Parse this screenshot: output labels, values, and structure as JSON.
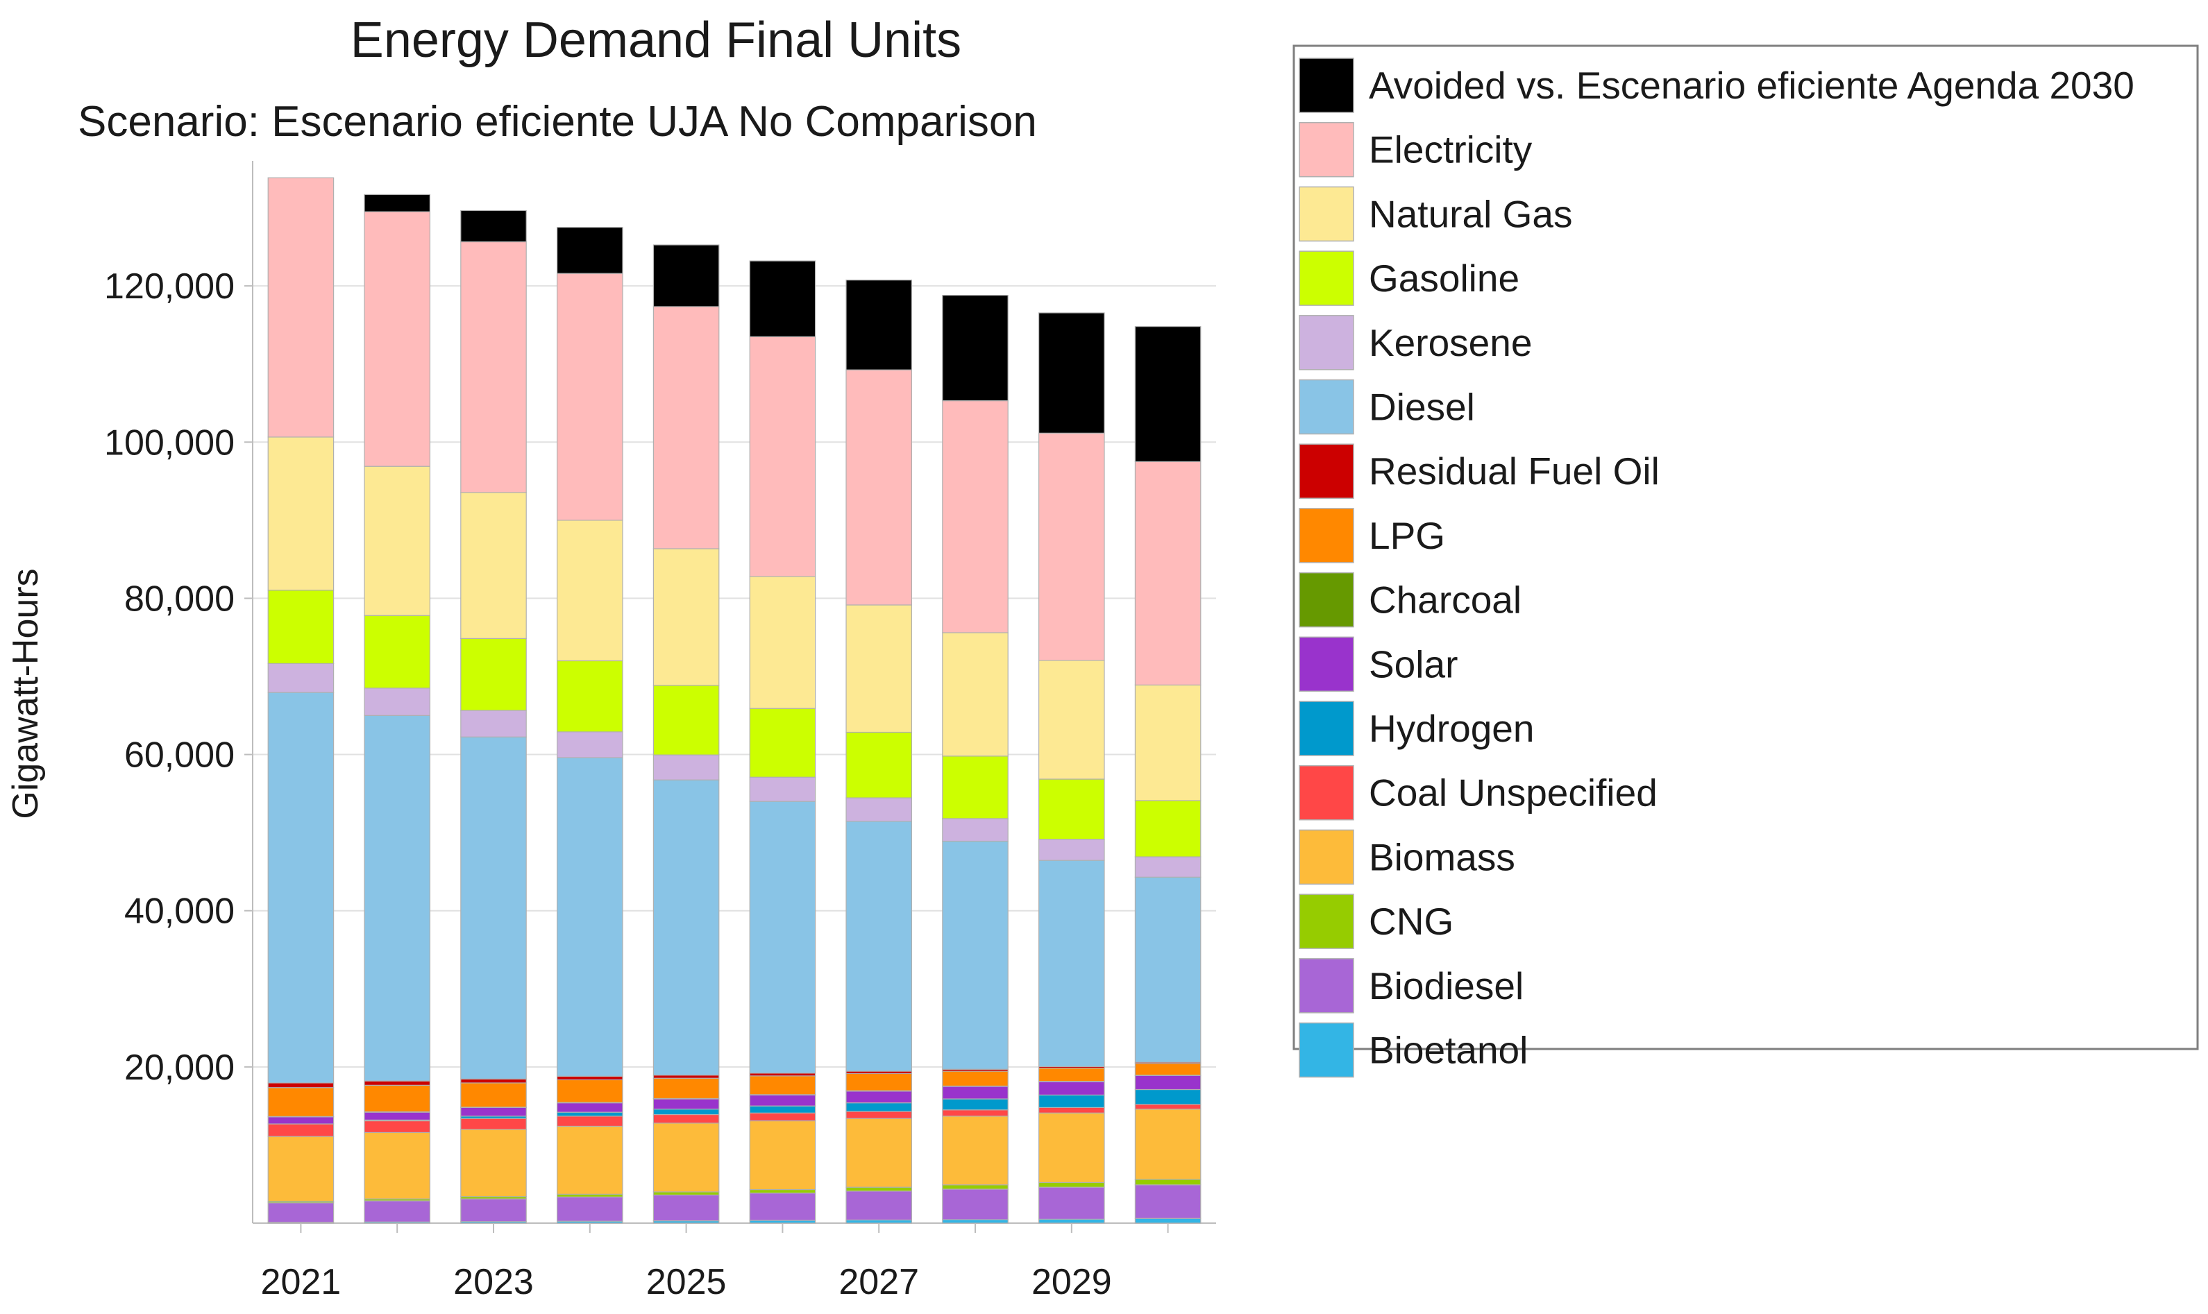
{
  "chart_data": {
    "type": "bar",
    "stacked": true,
    "title": "Energy Demand Final Units",
    "subtitle": "Scenario: Escenario eficiente UJA No Comparison",
    "xlabel": "",
    "ylabel": "Gigawatt-Hours",
    "ylim": [
      0,
      136000
    ],
    "yticks": [
      20000,
      40000,
      60000,
      80000,
      100000,
      120000
    ],
    "ytick_labels": [
      "20,000",
      "40,000",
      "60,000",
      "80,000",
      "100,000",
      "120,000"
    ],
    "grid": true,
    "legend_position": "right",
    "categories": [
      "2021",
      "2022",
      "2023",
      "2024",
      "2025",
      "2026",
      "2027",
      "2028",
      "2029",
      "2030"
    ],
    "xtick_labels": [
      "2021",
      "",
      "2023",
      "",
      "2025",
      "",
      "2027",
      "",
      "2029",
      ""
    ],
    "series": [
      {
        "name": "Bioetanol",
        "color": "#33b5e5",
        "values": [
          100,
          150,
          200,
          250,
          300,
          350,
          400,
          450,
          500,
          600
        ]
      },
      {
        "name": "Biodiesel",
        "color": "#a866d6",
        "values": [
          2500,
          2700,
          2900,
          3100,
          3300,
          3500,
          3700,
          3900,
          4100,
          4300
        ]
      },
      {
        "name": "CNG",
        "color": "#96cc00",
        "values": [
          200,
          250,
          300,
          350,
          400,
          450,
          500,
          550,
          600,
          700
        ]
      },
      {
        "name": "Biomass",
        "color": "#fdbb3a",
        "values": [
          8300,
          8500,
          8600,
          8700,
          8800,
          8800,
          8800,
          8800,
          8900,
          9000
        ]
      },
      {
        "name": "Coal Unspecified",
        "color": "#ff4747",
        "values": [
          1600,
          1500,
          1400,
          1300,
          1100,
          1000,
          900,
          800,
          700,
          600
        ]
      },
      {
        "name": "Hydrogen",
        "color": "#0099cc",
        "values": [
          0,
          100,
          300,
          500,
          700,
          900,
          1100,
          1400,
          1600,
          1900
        ]
      },
      {
        "name": "Solar",
        "color": "#9933cc",
        "values": [
          900,
          1000,
          1100,
          1200,
          1300,
          1400,
          1500,
          1600,
          1700,
          1800
        ]
      },
      {
        "name": "Charcoal",
        "color": "#669900",
        "values": [
          50,
          50,
          50,
          50,
          50,
          50,
          50,
          50,
          50,
          50
        ]
      },
      {
        "name": "LPG",
        "color": "#ff8800",
        "values": [
          3700,
          3400,
          3100,
          2900,
          2600,
          2400,
          2200,
          1900,
          1700,
          1500
        ]
      },
      {
        "name": "Residual Fuel Oil",
        "color": "#cc0000",
        "values": [
          600,
          550,
          500,
          450,
          400,
          350,
          300,
          250,
          200,
          150
        ]
      },
      {
        "name": "Diesel",
        "color": "#89c4e6",
        "values": [
          50000,
          46800,
          43800,
          40800,
          37800,
          34800,
          32000,
          29200,
          26400,
          23700
        ]
      },
      {
        "name": "Kerosene",
        "color": "#cdb2df",
        "values": [
          3700,
          3500,
          3400,
          3300,
          3200,
          3100,
          3000,
          2900,
          2700,
          2600
        ]
      },
      {
        "name": "Gasoline",
        "color": "#ccff00",
        "values": [
          9400,
          9300,
          9200,
          9100,
          8900,
          8800,
          8400,
          8000,
          7700,
          7200
        ]
      },
      {
        "name": "Natural Gas",
        "color": "#fde993",
        "values": [
          19600,
          19100,
          18700,
          18000,
          17500,
          16900,
          16300,
          15800,
          15200,
          14800
        ]
      },
      {
        "name": "Electricity",
        "color": "#ffbbbb",
        "values": [
          33200,
          32600,
          32100,
          31600,
          31000,
          30700,
          30100,
          29700,
          29100,
          28600
        ]
      },
      {
        "name": "Avoided vs. Escenario eficiente Agenda 2030",
        "color": "#000000",
        "values": [
          0,
          2200,
          4000,
          5900,
          7900,
          9700,
          11500,
          13500,
          15400,
          17300
        ]
      }
    ],
    "legend_order": [
      "Avoided vs. Escenario eficiente Agenda 2030",
      "Electricity",
      "Natural Gas",
      "Gasoline",
      "Kerosene",
      "Diesel",
      "Residual Fuel Oil",
      "LPG",
      "Charcoal",
      "Solar",
      "Hydrogen",
      "Coal Unspecified",
      "Biomass",
      "CNG",
      "Biodiesel",
      "Bioetanol"
    ]
  }
}
